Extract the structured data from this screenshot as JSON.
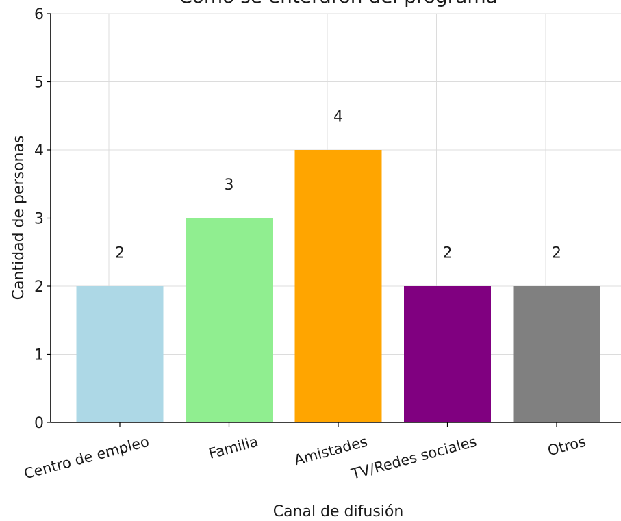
{
  "chart_data": {
    "type": "bar",
    "title": "Cómo se enteraron del programa",
    "xlabel": "Canal de difusión",
    "ylabel": "Cantidad de personas",
    "categories": [
      "Centro de empleo",
      "Familia",
      "Amistades",
      "TV/Redes sociales",
      "Otros"
    ],
    "values": [
      2,
      3,
      4,
      2,
      2
    ],
    "data_labels": [
      "2",
      "3",
      "4",
      "2",
      "2"
    ],
    "colors": [
      "#add8e6",
      "#90ee90",
      "#ffa500",
      "#800080",
      "#808080"
    ],
    "ylim": [
      0,
      6
    ],
    "yticks": [
      "0",
      "1",
      "2",
      "3",
      "4",
      "5",
      "6"
    ],
    "grid": true,
    "legend": "none",
    "xtick_rotation": 15
  }
}
